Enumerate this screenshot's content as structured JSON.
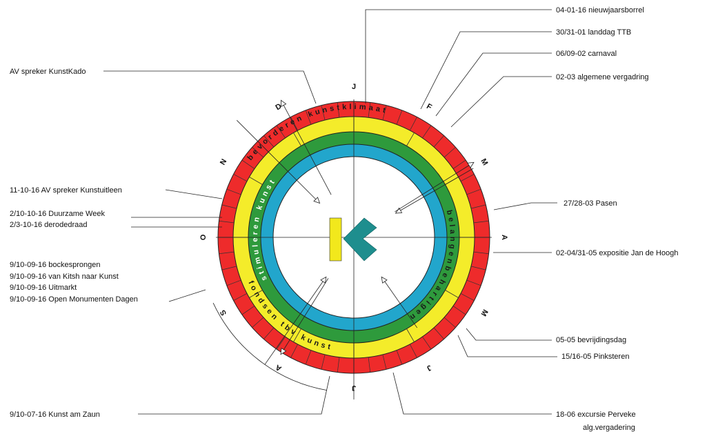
{
  "events_right": [
    {
      "id": "nieuwjaarsborrel",
      "text": "04-01-16 nieuwjaarsborrel"
    },
    {
      "id": "landdag",
      "text": "30/31-01 landdag TTB"
    },
    {
      "id": "carnaval",
      "text": "06/09-02 carnaval"
    },
    {
      "id": "algemene-vergadering",
      "text": "02-03 algemene vergadring"
    },
    {
      "id": "pasen",
      "text": "27/28-03 Pasen"
    },
    {
      "id": "expositie",
      "text": "02-04/31-05 expositie Jan de Hoogh"
    },
    {
      "id": "bevrijdingsdag",
      "text": "05-05 bevrijdingsdag"
    },
    {
      "id": "pinksteren",
      "text": "15/16-05 Pinksteren"
    },
    {
      "id": "excursie",
      "text": "18-06 excursie Perveke"
    },
    {
      "id": "alg-vergadering",
      "text": "alg.vergadering"
    }
  ],
  "events_left": [
    {
      "id": "kunstkado",
      "text": "AV spreker KunstKado"
    },
    {
      "id": "kunstuitleen",
      "text": "11-10-16 AV spreker  Kunstuitleen"
    },
    {
      "id": "duurzame-week",
      "text": "2/10-10-16 Duurzame Week"
    },
    {
      "id": "derodedraad",
      "text": "2/3-10-16 derodedraad"
    },
    {
      "id": "bockesprongen",
      "text": "9/10-09-16 bockesprongen"
    },
    {
      "id": "kitsh",
      "text": "9/10-09-16 van Kitsh naar Kunst"
    },
    {
      "id": "uitmarkt",
      "text": "9/10-09-16 Uitmarkt"
    },
    {
      "id": "monumenten",
      "text": "9/10-09-16 Open Monumenten Dagen"
    },
    {
      "id": "kunst-am-zaun",
      "text": "9/10-07-16 Kunst am Zaun"
    }
  ],
  "months": [
    "J",
    "F",
    "M",
    "A",
    "M",
    "J",
    "J",
    "A",
    "S",
    "O",
    "N",
    "D"
  ],
  "ring_texts": {
    "outer": "bevorderen kunstklimaat",
    "inner_left": "stimuleren kunst",
    "inner_right": "belangenbehartigen",
    "bottom": "fondsen tbv kunst"
  },
  "colors": {
    "red": "#ee2b2b",
    "yellow": "#f4ec2a",
    "green": "#2e9a3c",
    "blue": "#22a6cc",
    "logo_yellow": "#f2e81c",
    "logo_teal": "#1e8e8e"
  }
}
